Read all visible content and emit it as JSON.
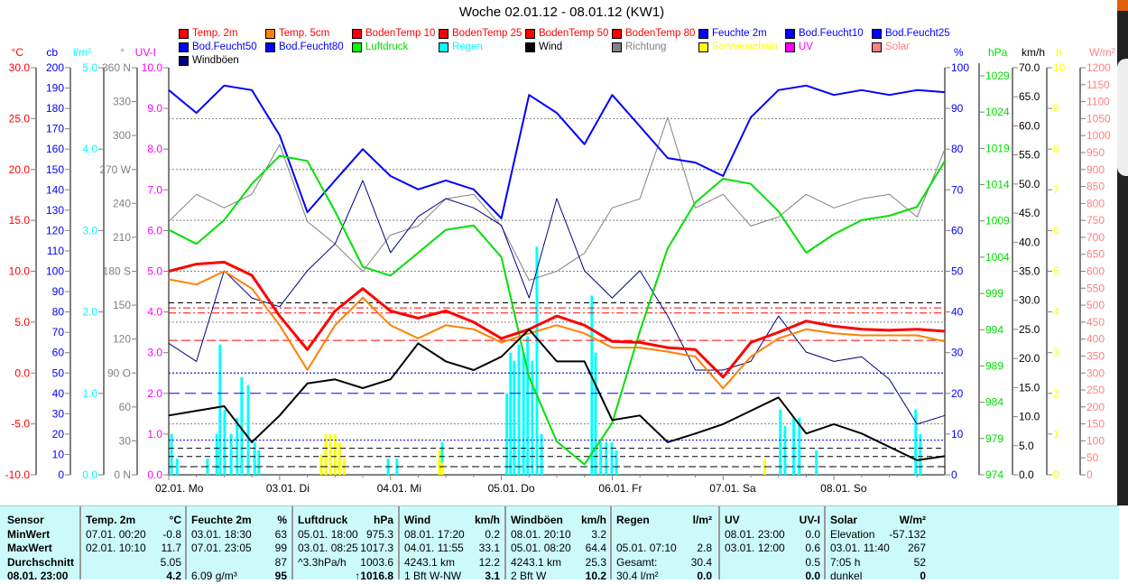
{
  "title": "Woche 02.01.12 - 08.01.12 (KW1)",
  "legend": [
    {
      "label": "Temp. 2m",
      "color": "#ff0000",
      "text": "#ff0000"
    },
    {
      "label": "Temp. 5cm",
      "color": "#ff8000",
      "text": "#ff0000"
    },
    {
      "label": "BodenTemp 10",
      "color": "#ff0000",
      "text": "#ff0000"
    },
    {
      "label": "BodenTemp 25",
      "color": "#ff0000",
      "text": "#ff0000"
    },
    {
      "label": "BodenTemp 50",
      "color": "#ff0000",
      "text": "#ff0000"
    },
    {
      "label": "BodenTemp 80",
      "color": "#ff0000",
      "text": "#ff0000"
    },
    {
      "label": "Feuchte 2m",
      "color": "#0000ff",
      "text": "#0000ff"
    },
    {
      "label": "Bod.Feucht10",
      "color": "#0000ff",
      "text": "#0000ff"
    },
    {
      "label": "Bod.Feucht25",
      "color": "#0000ff",
      "text": "#0000ff"
    },
    {
      "label": "Bod.Feucht50",
      "color": "#0000ff",
      "text": "#0000ff"
    },
    {
      "label": "Bod.Feucht80",
      "color": "#0000ff",
      "text": "#0000ff"
    },
    {
      "label": "Luftdruck",
      "color": "#00ff00",
      "text": "#00dd00"
    },
    {
      "label": "Regen",
      "color": "#00ffff",
      "text": "#00ffff"
    },
    {
      "label": "Wind",
      "color": "#000000",
      "text": "#000000"
    },
    {
      "label": "Richtung",
      "color": "#808080",
      "text": "#808080"
    },
    {
      "label": "Sonnenschein",
      "color": "#ffff00",
      "text": "#ffff00"
    },
    {
      "label": "UV",
      "color": "#ff00ff",
      "text": "#ff00ff"
    },
    {
      "label": "Solar",
      "color": "#ff8080",
      "text": "#ff8080"
    },
    {
      "label": "Windböen",
      "color": "#000080",
      "text": "#000000"
    }
  ],
  "chart_data": {
    "type": "line",
    "title": "Woche 02.01.12 - 08.01.12 (KW1)",
    "x_unit": "hours since 02.01. 00:00",
    "xlim": [
      0,
      168
    ],
    "x_tick_labels": [
      "02.01. Mo",
      "03.01. Di",
      "04.01. Mi",
      "05.01. Do",
      "06.01. Fr",
      "07.01. Sa",
      "08.01. So"
    ],
    "axes": {
      "temp": {
        "unit": "°C",
        "color": "#ff0000",
        "min": -10,
        "max": 30,
        "ticks": [
          "30.0",
          "25.0",
          "20.0",
          "15.0",
          "10.0",
          "5.0",
          "0.0",
          "-5.0",
          "-10.0"
        ]
      },
      "cb": {
        "unit": "cb",
        "color": "#0000ff",
        "min": 0,
        "max": 200,
        "ticks": [
          "200",
          "190",
          "180",
          "170",
          "160",
          "150",
          "140",
          "130",
          "120",
          "110",
          "100",
          "90",
          "80",
          "70",
          "60",
          "50",
          "40",
          "30",
          "20",
          "10",
          "0"
        ]
      },
      "rain": {
        "unit": "l/m²",
        "color": "#00ffff",
        "min": 0,
        "max": 5,
        "ticks": [
          "5.0",
          "4.0",
          "3.0",
          "2.0",
          "1.0",
          "0.0"
        ]
      },
      "dir": {
        "unit": "°",
        "color": "#808080",
        "min": 0,
        "max": 360,
        "ticks": [
          "360 N",
          "330",
          "300",
          "270 W",
          "240",
          "210",
          "180 S",
          "150",
          "120",
          "90 O",
          "60",
          "30",
          "0 N"
        ]
      },
      "uv": {
        "unit": "UV-I",
        "color": "#ff00ff",
        "min": 0,
        "max": 10,
        "ticks": [
          "10.0",
          "9.0",
          "8.0",
          "7.0",
          "6.0",
          "5.0",
          "4.0",
          "3.0",
          "2.0",
          "1.0",
          "0.0"
        ]
      },
      "hum": {
        "unit": "%",
        "color": "#0000ff",
        "min": 0,
        "max": 100,
        "ticks": [
          "100",
          "90",
          "80",
          "70",
          "60",
          "50",
          "40",
          "30",
          "20",
          "10",
          "0"
        ]
      },
      "press": {
        "unit": "hPa",
        "color": "#00dd00",
        "min": 974,
        "max": 1029,
        "ticks": [
          "1029",
          "1024",
          "1019",
          "1014",
          "1009",
          "1004",
          "999",
          "994",
          "989",
          "984",
          "979",
          "974"
        ]
      },
      "wind": {
        "unit": "km/h",
        "color": "#000000",
        "min": 0,
        "max": 70,
        "ticks": [
          "70.0",
          "65.0",
          "60.0",
          "55.0",
          "50.0",
          "45.0",
          "40.0",
          "35.0",
          "30.0",
          "25.0",
          "20.0",
          "15.0",
          "10.0",
          "5.0",
          "0.0"
        ]
      },
      "sun": {
        "unit": "h",
        "color": "#ffff00",
        "min": 0,
        "max": 10,
        "ticks": [
          "10",
          "9",
          "8",
          "7",
          "6",
          "5",
          "4",
          "3",
          "2",
          "1",
          "0"
        ]
      },
      "solar": {
        "unit": "W/m²",
        "color": "#ff8080",
        "min": 0,
        "max": 1200,
        "ticks": [
          "1200",
          "1150",
          "1100",
          "1050",
          "1000",
          "950",
          "900",
          "850",
          "800",
          "750",
          "700",
          "650",
          "600",
          "550",
          "500",
          "450",
          "400",
          "350",
          "300",
          "250",
          "200",
          "150",
          "100",
          "50",
          "0"
        ]
      }
    },
    "x": [
      0,
      6,
      12,
      18,
      24,
      30,
      36,
      42,
      48,
      54,
      60,
      66,
      72,
      78,
      84,
      90,
      96,
      102,
      108,
      114,
      120,
      126,
      132,
      138,
      144,
      150,
      156,
      162,
      168
    ],
    "series": [
      {
        "name": "Richtung",
        "axis": "dir",
        "color": "#808080",
        "width": 1,
        "values": [
          224,
          248,
          236,
          248,
          292,
          224,
          204,
          180,
          212,
          220,
          244,
          248,
          220,
          172,
          180,
          196,
          236,
          244,
          316,
          236,
          248,
          220,
          228,
          248,
          236,
          244,
          248,
          228,
          288
        ]
      },
      {
        "name": "Feuchte 2m",
        "axis": "hum",
        "color": "#0000ff",
        "width": 2,
        "values": [
          94.5,
          88.9,
          95.6,
          94.5,
          83.4,
          64.5,
          72.3,
          80.0,
          73.4,
          70.1,
          72.3,
          70.1,
          63.0,
          93.3,
          88.9,
          81.2,
          93.3,
          85.6,
          77.8,
          76.7,
          73.4,
          87.8,
          94.5,
          95.6,
          93.3,
          94.5,
          93.3,
          94.5,
          94.0
        ]
      },
      {
        "name": "Windböen",
        "axis": "wind",
        "color": "#000080",
        "width": 1,
        "values": [
          22.6,
          19.5,
          35.1,
          30.4,
          28.9,
          35.1,
          39.7,
          50.6,
          38.2,
          44.4,
          47.5,
          45.9,
          42.9,
          30.4,
          47.5,
          35.1,
          30.4,
          35.1,
          27.3,
          18.0,
          18.0,
          19.5,
          27.3,
          21.1,
          19.5,
          20.3,
          16.4,
          8.7,
          10.2
        ]
      },
      {
        "name": "Luftdruck",
        "axis": "press",
        "color": "#00e000",
        "width": 2,
        "values": [
          1007.1,
          1005.2,
          1008.4,
          1013.3,
          1017.1,
          1016.4,
          1009.6,
          1002.1,
          1000.9,
          1004.0,
          1007.1,
          1007.7,
          1003.4,
          987.2,
          978.5,
          975.4,
          981.0,
          993.4,
          1004.6,
          1010.8,
          1014.0,
          1013.3,
          1009.6,
          1004.0,
          1006.5,
          1008.4,
          1009.0,
          1010.2,
          1016.4
        ]
      },
      {
        "name": "Temp. 5cm",
        "axis": "temp",
        "color": "#ff8000",
        "width": 2,
        "values": [
          9.2,
          8.7,
          10.0,
          8.3,
          4.7,
          0.3,
          4.7,
          7.4,
          4.7,
          3.4,
          4.7,
          4.3,
          3.0,
          3.9,
          4.7,
          3.9,
          2.5,
          2.5,
          2.1,
          1.6,
          -1.5,
          1.6,
          3.4,
          4.3,
          3.9,
          3.7,
          3.7,
          3.7,
          3.1
        ]
      },
      {
        "name": "Temp. 2m",
        "axis": "temp",
        "color": "#ff0000",
        "width": 3,
        "values": [
          10.0,
          10.7,
          10.9,
          9.6,
          5.6,
          2.3,
          6.1,
          8.3,
          6.1,
          5.4,
          6.1,
          5.0,
          3.4,
          4.3,
          5.6,
          4.7,
          3.1,
          3.0,
          2.5,
          2.3,
          -0.4,
          3.0,
          4.0,
          5.1,
          4.6,
          4.3,
          4.2,
          4.3,
          4.1
        ]
      },
      {
        "name": "Wind",
        "axis": "wind",
        "color": "#000000",
        "width": 2,
        "values": [
          10.2,
          11.0,
          11.8,
          5.6,
          10.2,
          15.7,
          16.4,
          14.9,
          16.4,
          22.6,
          19.5,
          18.0,
          20.3,
          25.0,
          19.5,
          19.5,
          9.4,
          10.2,
          5.6,
          7.1,
          8.7,
          11.0,
          13.3,
          7.1,
          8.7,
          7.1,
          4.8,
          2.5,
          3.2
        ]
      }
    ],
    "bars": [
      {
        "name": "Regen",
        "axis": "rain",
        "color": "#00ffff",
        "points": [
          [
            0.6,
            0.5
          ],
          [
            1.8,
            0.2
          ],
          [
            8.4,
            0.2
          ],
          [
            10.4,
            0.5
          ],
          [
            11.1,
            1.6
          ],
          [
            12.1,
            0.8
          ],
          [
            13.5,
            0.5
          ],
          [
            14.8,
            0.7
          ],
          [
            15.8,
            1.2
          ],
          [
            17.2,
            1.1
          ],
          [
            18.6,
            0.4
          ],
          [
            19.5,
            0.3
          ],
          [
            47.5,
            0.2
          ],
          [
            49.4,
            0.2
          ],
          [
            59.2,
            0.4
          ],
          [
            73.2,
            1.0
          ],
          [
            74.0,
            1.5
          ],
          [
            74.8,
            1.4
          ],
          [
            75.8,
            1.6
          ],
          [
            76.8,
            1.5
          ],
          [
            77.7,
            1.7
          ],
          [
            78.7,
            1.4
          ],
          [
            79.7,
            2.8
          ],
          [
            80.7,
            0.5
          ],
          [
            91.6,
            2.2
          ],
          [
            92.4,
            1.5
          ],
          [
            93.5,
            0.4
          ],
          [
            94.7,
            0.4
          ],
          [
            95.9,
            0.4
          ],
          [
            96.9,
            0.3
          ],
          [
            132.4,
            0.8
          ],
          [
            133.4,
            0.6
          ],
          [
            135.3,
            0.7
          ],
          [
            136.5,
            0.7
          ],
          [
            140.2,
            0.3
          ],
          [
            161.7,
            0.8
          ],
          [
            162.7,
            0.5
          ]
        ]
      },
      {
        "name": "Sonnenschein",
        "axis": "sun",
        "color": "#ffff00",
        "points": [
          [
            33.0,
            0.5
          ],
          [
            34.0,
            1.0
          ],
          [
            35.0,
            1.0
          ],
          [
            36.0,
            1.0
          ],
          [
            37.0,
            0.8
          ],
          [
            38.0,
            0.4
          ],
          [
            58.6,
            0.6
          ],
          [
            59.2,
            0.3
          ],
          [
            129.0,
            0.4
          ]
        ]
      }
    ],
    "reference_lines": [
      {
        "name": "BodenTemp",
        "axis": "temp",
        "color": "#ff0000",
        "value": 6.4,
        "dash": "8,3,2,3"
      },
      {
        "name": "BodenTemp",
        "axis": "temp",
        "color": "#ff0000",
        "value": 5.9,
        "dash": "8,3,2,3"
      },
      {
        "name": "BodenTemp",
        "axis": "temp",
        "color": "#000000",
        "value": 6.9,
        "dash": "6,4"
      },
      {
        "name": "BodenTemp",
        "axis": "temp",
        "color": "#ff0000",
        "value": 3.2,
        "dash": "10,4"
      },
      {
        "name": "Bod.Feucht",
        "axis": "cb",
        "color": "#0000ff",
        "value": 50,
        "dash": "2,2"
      },
      {
        "name": "Bod.Feucht",
        "axis": "cb",
        "color": "#0000ff",
        "value": 40,
        "dash": "12,6"
      },
      {
        "name": "Bod.Feucht",
        "axis": "cb",
        "color": "#0000ff",
        "value": 17,
        "dash": "2,2"
      },
      {
        "name": "Bod.Feucht",
        "axis": "cb",
        "color": "#000000",
        "value": 13,
        "dash": "6,4"
      },
      {
        "name": "Bod.Feucht",
        "axis": "cb",
        "color": "#000000",
        "value": 9,
        "dash": "6,4"
      },
      {
        "name": "Bod.Feucht",
        "axis": "cb",
        "color": "#000000",
        "value": 4,
        "dash": "8,4"
      }
    ],
    "grid": true
  },
  "table": {
    "sensor": {
      "labels": [
        "Sensor",
        "MinWert",
        "MaxWert",
        "Durchschnitt",
        "08.01. 23:00"
      ]
    },
    "columns": [
      {
        "head": "Temp. 2m",
        "unit": "°C",
        "rows": [
          [
            "07.01. 00:20",
            "-0.8"
          ],
          [
            "02.01. 10:10",
            "11.7"
          ],
          [
            "",
            "5.05"
          ],
          [
            "",
            "4.2"
          ]
        ]
      },
      {
        "head": "Feuchte 2m",
        "unit": "%",
        "rows": [
          [
            "03.01. 18:30",
            "63"
          ],
          [
            "07.01. 23:05",
            "99"
          ],
          [
            "",
            "87"
          ],
          [
            "6.09 g/m³",
            "95"
          ]
        ]
      },
      {
        "head": "Luftdruck",
        "unit": "hPa",
        "rows": [
          [
            "05.01. 18:00",
            "975.3"
          ],
          [
            "03.01. 08:25",
            "1017.3"
          ],
          [
            "^3.3hPa/h",
            "1003.6"
          ],
          [
            "",
            "↑1016.8"
          ]
        ]
      },
      {
        "head": "Wind",
        "unit": "km/h",
        "rows": [
          [
            "08.01. 17:20",
            "0.2"
          ],
          [
            "04.01. 11:55",
            "33.1"
          ],
          [
            "4243.1 km",
            "12.2"
          ],
          [
            "1 Bft W-NW",
            "3.1"
          ]
        ]
      },
      {
        "head": "Windböen",
        "unit": "km/h",
        "rows": [
          [
            "08.01. 20:10",
            "3.2"
          ],
          [
            "05.01. 08:20",
            "64.4"
          ],
          [
            "4243.1 km",
            "25.3"
          ],
          [
            "2 Bft W",
            "10.2"
          ]
        ]
      },
      {
        "head": "Regen",
        "unit": "l/m²",
        "rows": [
          [
            "",
            ""
          ],
          [
            "05.01. 07:10",
            "2.8"
          ],
          [
            "Gesamt:",
            "30.4"
          ],
          [
            "30.4 l/m²",
            "0.0"
          ]
        ]
      },
      {
        "head": "UV",
        "unit": "UV-I",
        "rows": [
          [
            "08.01. 23:00",
            "0.0"
          ],
          [
            "03.01. 12:00",
            "0.6"
          ],
          [
            "",
            "0.5"
          ],
          [
            "",
            "0.0"
          ]
        ]
      },
      {
        "head": "Solar",
        "unit": "W/m²",
        "rows": [
          [
            "Elevation",
            "-57.132"
          ],
          [
            "03.01. 11:40",
            "267"
          ],
          [
            "7:05 h",
            "52"
          ],
          [
            "dunkel",
            "0"
          ]
        ]
      }
    ]
  }
}
